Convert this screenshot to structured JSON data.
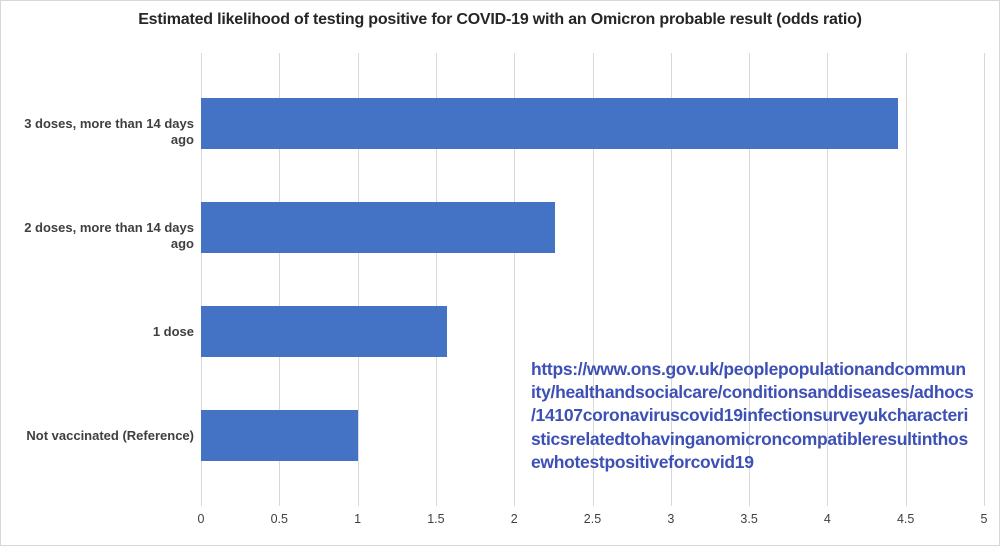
{
  "chart_data": {
    "type": "bar",
    "orientation": "horizontal",
    "title": "Estimated likelihood of testing positive for COVID-19 with an Omicron probable result (odds ratio)",
    "categories": [
      "3 doses, more than 14 days ago",
      "2 doses, more than 14 days ago",
      "1 dose",
      "Not vaccinated (Reference)"
    ],
    "values": [
      4.45,
      2.26,
      1.57,
      1.0
    ],
    "xlabel": "",
    "ylabel": "",
    "xlim": [
      0,
      5
    ],
    "x_ticks": [
      "0",
      "0.5",
      "1",
      "1.5",
      "2",
      "2.5",
      "3",
      "3.5",
      "4",
      "4.5",
      "5"
    ],
    "grid": "vertical",
    "legend": "none",
    "bar_color": "#4472C4",
    "gridline_color": "#D9D9D9"
  },
  "annotation": {
    "url": "https://www.ons.gov.uk/peoplepopulationandcommunity/healthandsocialcare/conditionsanddiseases/adhocs/14107coronaviruscovid19infectionsurveyukcharacteristicsrelatedtohavinganomicroncompatibleresultinthosewhotestpositiveforcovid19",
    "url_lines": [
      "https://www.ons.gov.uk/peoplepopulationandcommun",
      "ity/healthandsocialcare/conditionsanddiseases/adhocs",
      "/14107coronaviruscovid19infectionsurveyukcharacteri",
      "sticsrelatedtohavinganomicroncompatibleresultinthos",
      "ewhotestpositiveforcovid19"
    ],
    "link_color": "#3D50B5"
  }
}
